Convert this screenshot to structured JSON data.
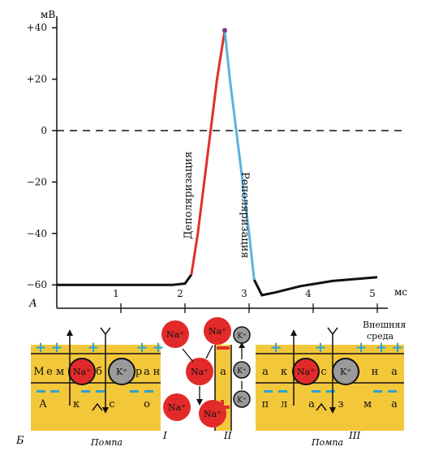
{
  "chart_data": {
    "type": "line",
    "yunit": "мВ",
    "xunit": "мс",
    "ylim": [
      -65,
      42
    ],
    "xlim": [
      0,
      5.2
    ],
    "y_ticks": [
      "+40",
      "+20",
      "0",
      "−20",
      "−40",
      "−60"
    ],
    "y_tick_values": [
      40,
      20,
      0,
      -20,
      -40,
      -60
    ],
    "x_ticks": [
      "1",
      "2",
      "3",
      "4",
      "5"
    ],
    "x_tick_values": [
      1,
      2,
      3,
      4,
      5
    ],
    "zero_line_dashed": true,
    "series": [
      {
        "name": "Деполяризация",
        "color": "#e0302a",
        "points": [
          [
            2.1,
            -56
          ],
          [
            2.2,
            -40
          ],
          [
            2.3,
            -20
          ],
          [
            2.4,
            0
          ],
          [
            2.5,
            20
          ],
          [
            2.62,
            39
          ]
        ]
      },
      {
        "name": "Реполяризация",
        "color": "#5bb3dc",
        "points": [
          [
            2.62,
            39
          ],
          [
            2.7,
            20
          ],
          [
            2.8,
            0
          ],
          [
            2.9,
            -20
          ],
          [
            3.0,
            -40
          ],
          [
            3.08,
            -58
          ]
        ]
      }
    ],
    "baseline": {
      "color": "#111111",
      "before": [
        [
          0,
          -60
        ],
        [
          1.0,
          -60
        ],
        [
          1.8,
          -60
        ],
        [
          2.0,
          -59.5
        ],
        [
          2.1,
          -56
        ]
      ],
      "after": [
        [
          3.08,
          -58
        ],
        [
          3.2,
          -64
        ],
        [
          3.4,
          -63
        ],
        [
          3.8,
          -60.5
        ],
        [
          4.3,
          -58.5
        ],
        [
          5.0,
          -57
        ]
      ]
    }
  },
  "labels": {
    "panel_a": "А",
    "panel_b": "Б",
    "depolarization": "Деполяризация",
    "repolarization": "Реполяризация",
    "outer_env_1": "Внешняя",
    "outer_env_2": "среда",
    "pump_left": "Помпа",
    "pump_right": "Помпа",
    "roman_1": "I",
    "roman_2": "II",
    "roman_3": "III"
  },
  "membrane_left_top": [
    "М",
    "е",
    "м",
    "б",
    "р",
    "а",
    "н"
  ],
  "membrane_left_bottom": [
    "А",
    "к",
    "с",
    "о"
  ],
  "membrane_mid_letter": "а",
  "membrane_right_top": [
    "а",
    "к",
    "с",
    "о",
    "н",
    "а"
  ],
  "membrane_right_bottom": [
    "п",
    "л",
    "а",
    "з",
    "м",
    "а"
  ],
  "ions": {
    "na": "Na⁺",
    "k": "K⁺"
  },
  "colors": {
    "membrane": "#f3c73a",
    "na_ion": "#e22a2a",
    "k_ion": "#9a9a9a",
    "plus_sign": "#29a3d6",
    "minus_sign": "#29a3d6",
    "red_sign": "#e0302a",
    "axis": "#111111"
  }
}
